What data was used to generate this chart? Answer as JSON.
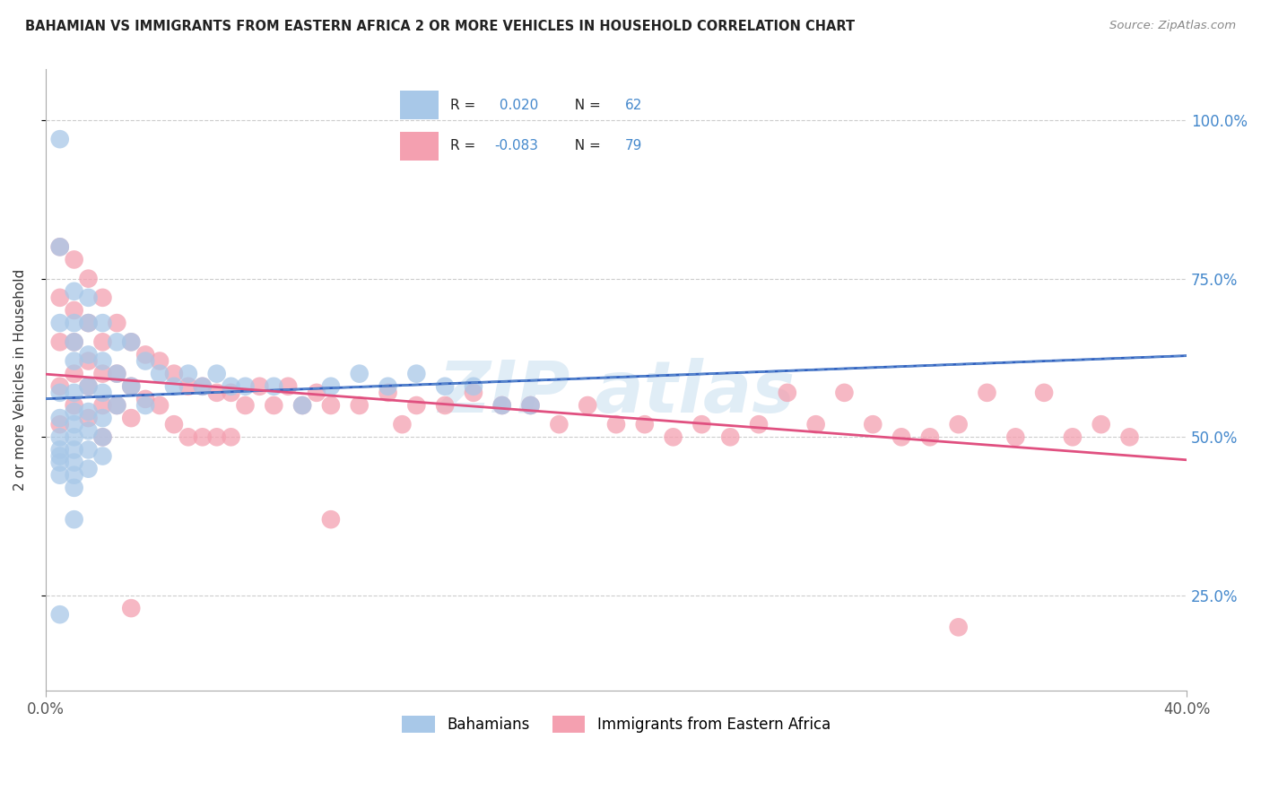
{
  "title": "BAHAMIAN VS IMMIGRANTS FROM EASTERN AFRICA 2 OR MORE VEHICLES IN HOUSEHOLD CORRELATION CHART",
  "source": "Source: ZipAtlas.com",
  "ylabel": "2 or more Vehicles in Household",
  "ytick_values": [
    0.25,
    0.5,
    0.75,
    1.0
  ],
  "ytick_labels": [
    "25.0%",
    "50.0%",
    "75.0%",
    "100.0%"
  ],
  "xmin": 0.0,
  "xmax": 0.4,
  "ymin": 0.1,
  "ymax": 1.08,
  "r_blue": 0.02,
  "n_blue": 62,
  "r_pink": -0.083,
  "n_pink": 79,
  "legend_labels": [
    "Bahamians",
    "Immigrants from Eastern Africa"
  ],
  "blue_color": "#A8C8E8",
  "pink_color": "#F4A0B0",
  "blue_line_color": "#3060C0",
  "pink_line_color": "#E05080",
  "blue_dash_color": "#6090D0",
  "grid_color": "#CCCCCC",
  "blue_x": [
    0.005,
    0.005,
    0.005,
    0.005,
    0.005,
    0.005,
    0.005,
    0.005,
    0.005,
    0.005,
    0.01,
    0.01,
    0.01,
    0.01,
    0.01,
    0.01,
    0.01,
    0.01,
    0.01,
    0.01,
    0.01,
    0.01,
    0.015,
    0.015,
    0.015,
    0.015,
    0.015,
    0.015,
    0.015,
    0.015,
    0.02,
    0.02,
    0.02,
    0.02,
    0.02,
    0.02,
    0.025,
    0.025,
    0.025,
    0.03,
    0.03,
    0.035,
    0.035,
    0.04,
    0.045,
    0.05,
    0.055,
    0.06,
    0.065,
    0.07,
    0.08,
    0.09,
    0.1,
    0.11,
    0.12,
    0.13,
    0.14,
    0.15,
    0.16,
    0.17,
    0.005,
    0.01
  ],
  "blue_y": [
    0.97,
    0.8,
    0.68,
    0.57,
    0.53,
    0.5,
    0.48,
    0.47,
    0.46,
    0.44,
    0.73,
    0.68,
    0.62,
    0.57,
    0.54,
    0.52,
    0.5,
    0.48,
    0.46,
    0.44,
    0.65,
    0.42,
    0.72,
    0.68,
    0.63,
    0.58,
    0.54,
    0.51,
    0.48,
    0.45,
    0.68,
    0.62,
    0.57,
    0.53,
    0.5,
    0.47,
    0.65,
    0.6,
    0.55,
    0.65,
    0.58,
    0.62,
    0.55,
    0.6,
    0.58,
    0.6,
    0.58,
    0.6,
    0.58,
    0.58,
    0.58,
    0.55,
    0.58,
    0.6,
    0.58,
    0.6,
    0.58,
    0.58,
    0.55,
    0.55,
    0.22,
    0.37
  ],
  "pink_x": [
    0.005,
    0.005,
    0.005,
    0.005,
    0.005,
    0.01,
    0.01,
    0.01,
    0.01,
    0.01,
    0.015,
    0.015,
    0.015,
    0.015,
    0.015,
    0.02,
    0.02,
    0.02,
    0.02,
    0.02,
    0.025,
    0.025,
    0.025,
    0.03,
    0.03,
    0.03,
    0.035,
    0.035,
    0.04,
    0.04,
    0.045,
    0.045,
    0.05,
    0.05,
    0.055,
    0.055,
    0.06,
    0.06,
    0.065,
    0.065,
    0.07,
    0.075,
    0.08,
    0.085,
    0.09,
    0.095,
    0.1,
    0.11,
    0.12,
    0.125,
    0.13,
    0.14,
    0.15,
    0.16,
    0.17,
    0.18,
    0.19,
    0.2,
    0.21,
    0.22,
    0.23,
    0.24,
    0.25,
    0.26,
    0.27,
    0.28,
    0.29,
    0.3,
    0.31,
    0.32,
    0.33,
    0.34,
    0.35,
    0.36,
    0.37,
    0.38,
    0.03,
    0.1,
    0.32
  ],
  "pink_y": [
    0.8,
    0.72,
    0.65,
    0.58,
    0.52,
    0.78,
    0.7,
    0.65,
    0.6,
    0.55,
    0.75,
    0.68,
    0.62,
    0.58,
    0.53,
    0.72,
    0.65,
    0.6,
    0.55,
    0.5,
    0.68,
    0.6,
    0.55,
    0.65,
    0.58,
    0.53,
    0.63,
    0.56,
    0.62,
    0.55,
    0.6,
    0.52,
    0.58,
    0.5,
    0.58,
    0.5,
    0.57,
    0.5,
    0.57,
    0.5,
    0.55,
    0.58,
    0.55,
    0.58,
    0.55,
    0.57,
    0.55,
    0.55,
    0.57,
    0.52,
    0.55,
    0.55,
    0.57,
    0.55,
    0.55,
    0.52,
    0.55,
    0.52,
    0.52,
    0.5,
    0.52,
    0.5,
    0.52,
    0.57,
    0.52,
    0.57,
    0.52,
    0.5,
    0.5,
    0.52,
    0.57,
    0.5,
    0.57,
    0.5,
    0.52,
    0.5,
    0.23,
    0.37,
    0.2
  ]
}
